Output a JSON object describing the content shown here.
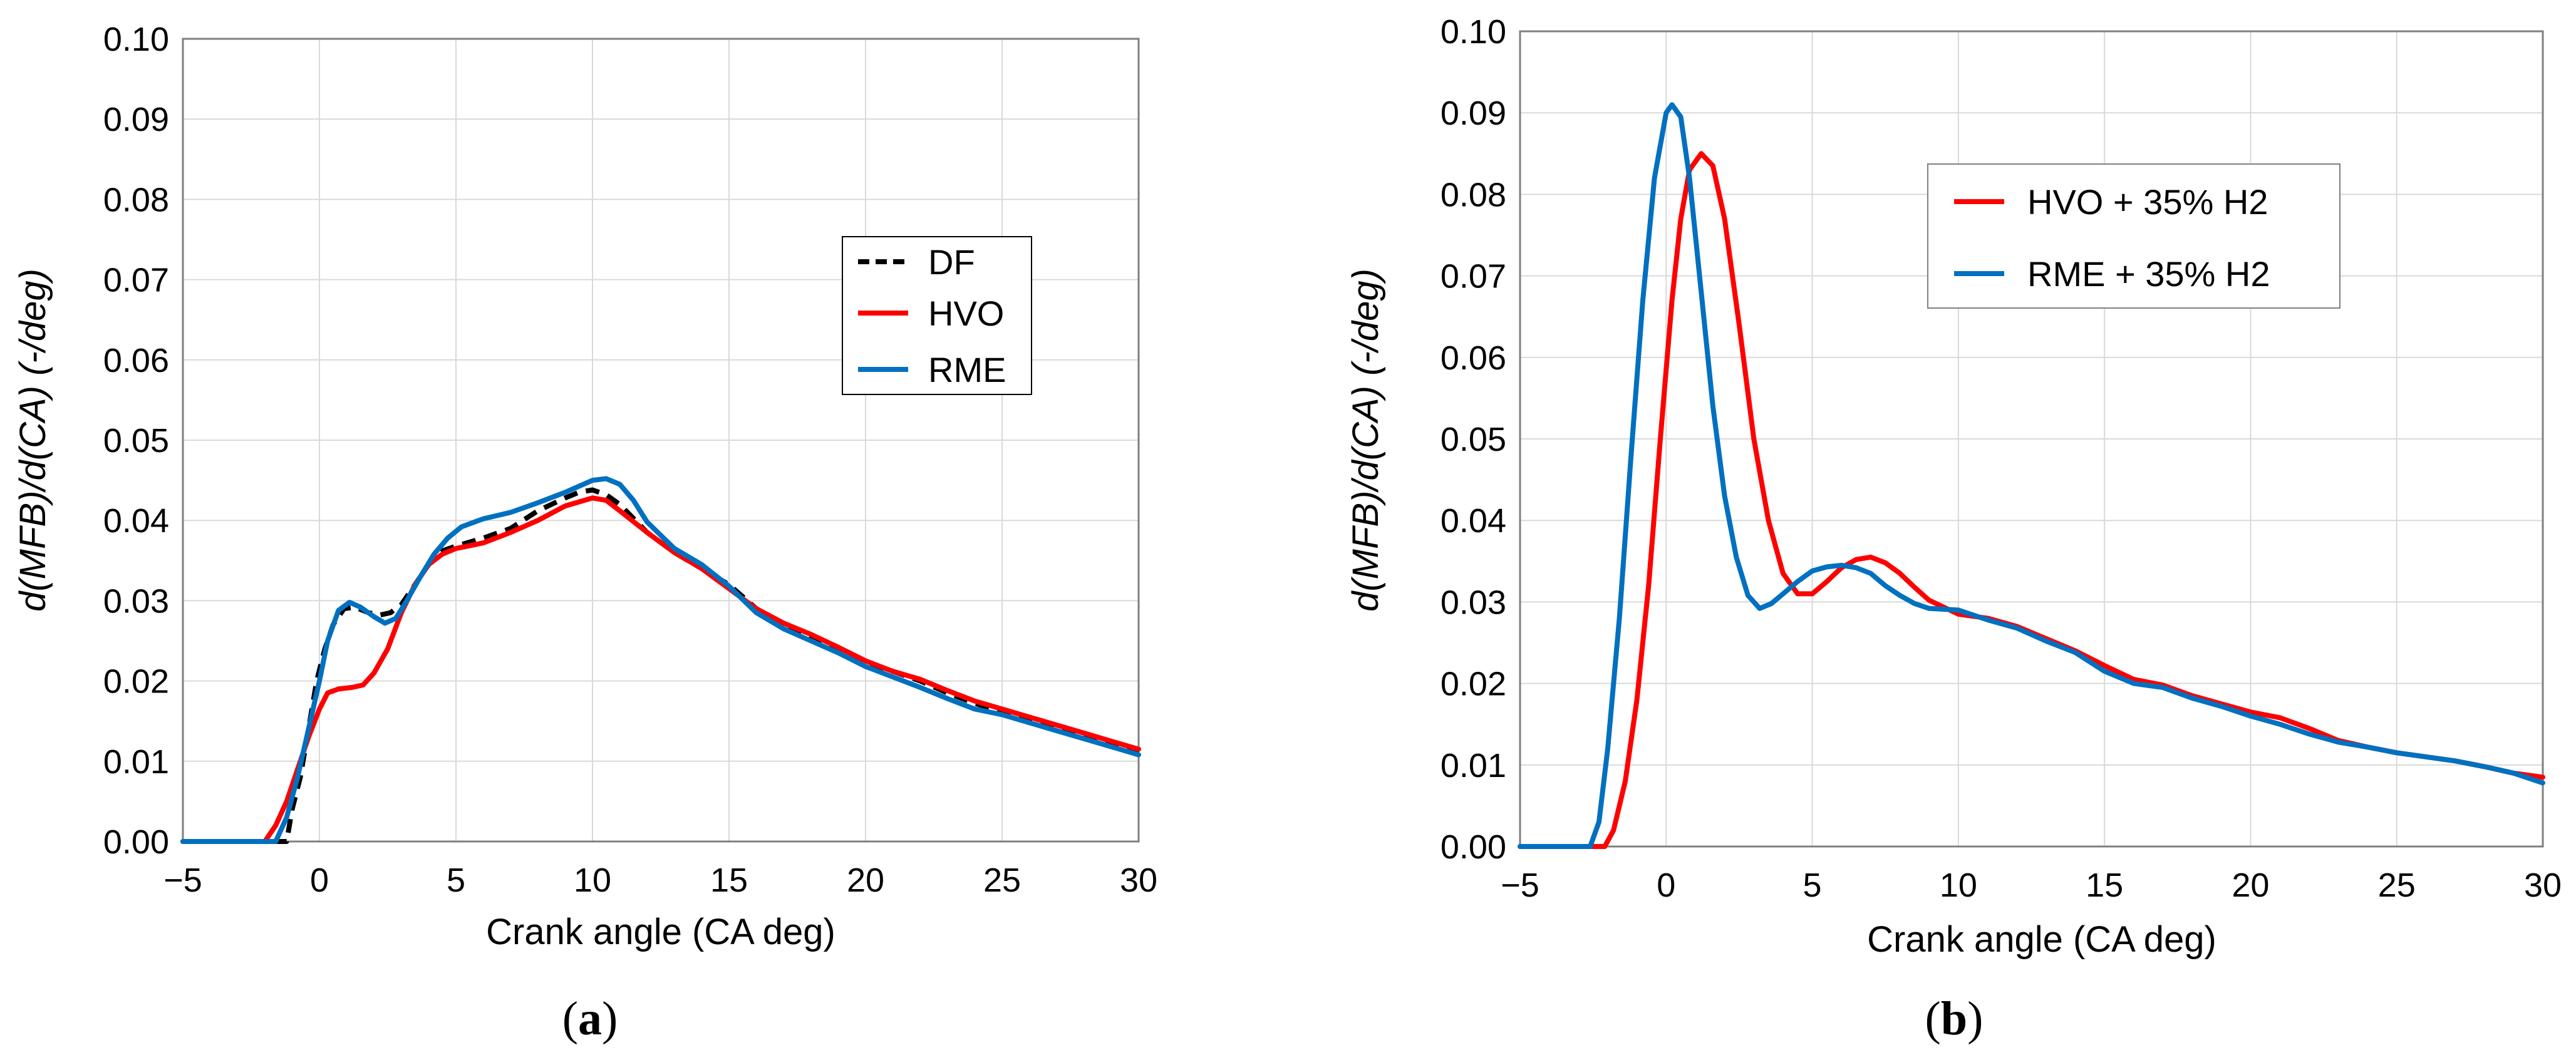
{
  "chart_data": [
    {
      "type": "line",
      "caption_letter": "a",
      "xlabel": "Crank angle (CA deg)",
      "ylabel": "d(MFB)/d(CA)  (-/deg)",
      "xlim": [
        -5,
        30
      ],
      "ylim": [
        0,
        0.1
      ],
      "x_ticks": [
        "−5",
        "0",
        "5",
        "10",
        "15",
        "20",
        "25",
        "30"
      ],
      "y_ticks": [
        "0.00",
        "0.01",
        "0.02",
        "0.03",
        "0.04",
        "0.05",
        "0.06",
        "0.07",
        "0.08",
        "0.09",
        "0.10"
      ],
      "grid": true,
      "legend_position": "right-middle",
      "series": [
        {
          "name": "DF",
          "color": "#000000",
          "dashed": true,
          "points": [
            [
              -5,
              0
            ],
            [
              -1.5,
              0
            ],
            [
              -1.2,
              0.0
            ],
            [
              -1.0,
              0.004
            ],
            [
              -0.7,
              0.008
            ],
            [
              -0.4,
              0.014
            ],
            [
              -0.1,
              0.02
            ],
            [
              0.2,
              0.024
            ],
            [
              0.5,
              0.027
            ],
            [
              0.9,
              0.029
            ],
            [
              1.3,
              0.0292
            ],
            [
              1.8,
              0.0285
            ],
            [
              2.2,
              0.0282
            ],
            [
              2.6,
              0.0285
            ],
            [
              3.0,
              0.0295
            ],
            [
              3.5,
              0.032
            ],
            [
              4.0,
              0.0345
            ],
            [
              4.5,
              0.0362
            ],
            [
              5.0,
              0.0368
            ],
            [
              6.0,
              0.0378
            ],
            [
              7.0,
              0.039
            ],
            [
              8.0,
              0.0412
            ],
            [
              9.0,
              0.0428
            ],
            [
              9.5,
              0.0435
            ],
            [
              10.0,
              0.0438
            ],
            [
              10.5,
              0.0432
            ],
            [
              11.0,
              0.042
            ],
            [
              12.0,
              0.0385
            ],
            [
              13.0,
              0.036
            ],
            [
              14.0,
              0.034
            ],
            [
              15.0,
              0.032
            ],
            [
              16.0,
              0.029
            ],
            [
              17.0,
              0.027
            ],
            [
              18.0,
              0.0255
            ],
            [
              19.0,
              0.024
            ],
            [
              20.0,
              0.022
            ],
            [
              21.0,
              0.0212
            ],
            [
              22.0,
              0.02
            ],
            [
              23.0,
              0.0185
            ],
            [
              24.0,
              0.0172
            ],
            [
              25.0,
              0.0162
            ],
            [
              26.0,
              0.0152
            ],
            [
              27.0,
              0.0142
            ],
            [
              28.0,
              0.0132
            ],
            [
              29.0,
              0.0122
            ],
            [
              30.0,
              0.0112
            ]
          ]
        },
        {
          "name": "HVO",
          "color": "#ff0000",
          "dashed": false,
          "points": [
            [
              -5,
              0
            ],
            [
              -2.0,
              0
            ],
            [
              -1.6,
              0.002
            ],
            [
              -1.2,
              0.005
            ],
            [
              -0.8,
              0.009
            ],
            [
              -0.4,
              0.013
            ],
            [
              0.0,
              0.0165
            ],
            [
              0.3,
              0.0185
            ],
            [
              0.7,
              0.019
            ],
            [
              1.2,
              0.0192
            ],
            [
              1.6,
              0.0195
            ],
            [
              2.0,
              0.021
            ],
            [
              2.5,
              0.024
            ],
            [
              3.0,
              0.0285
            ],
            [
              3.5,
              0.032
            ],
            [
              4.0,
              0.0345
            ],
            [
              4.5,
              0.0358
            ],
            [
              5.0,
              0.0365
            ],
            [
              6.0,
              0.0372
            ],
            [
              7.0,
              0.0385
            ],
            [
              8.0,
              0.04
            ],
            [
              9.0,
              0.0418
            ],
            [
              10.0,
              0.0428
            ],
            [
              10.5,
              0.0425
            ],
            [
              11.0,
              0.0412
            ],
            [
              12.0,
              0.0385
            ],
            [
              13.0,
              0.036
            ],
            [
              14.0,
              0.034
            ],
            [
              15.0,
              0.0315
            ],
            [
              16.0,
              0.029
            ],
            [
              17.0,
              0.0272
            ],
            [
              18.0,
              0.0258
            ],
            [
              19.0,
              0.0242
            ],
            [
              20.0,
              0.0225
            ],
            [
              21.0,
              0.0212
            ],
            [
              22.0,
              0.0202
            ],
            [
              23.0,
              0.0188
            ],
            [
              24.0,
              0.0175
            ],
            [
              25.0,
              0.0165
            ],
            [
              26.0,
              0.0155
            ],
            [
              27.0,
              0.0145
            ],
            [
              28.0,
              0.0135
            ],
            [
              29.0,
              0.0125
            ],
            [
              30.0,
              0.0115
            ]
          ]
        },
        {
          "name": "RME",
          "color": "#0070c0",
          "dashed": false,
          "points": [
            [
              -5,
              0
            ],
            [
              -1.6,
              0
            ],
            [
              -1.2,
              0.003
            ],
            [
              -0.8,
              0.008
            ],
            [
              -0.4,
              0.014
            ],
            [
              0.0,
              0.02
            ],
            [
              0.3,
              0.025
            ],
            [
              0.7,
              0.0288
            ],
            [
              1.1,
              0.0298
            ],
            [
              1.5,
              0.0292
            ],
            [
              2.0,
              0.028
            ],
            [
              2.4,
              0.0272
            ],
            [
              2.8,
              0.0278
            ],
            [
              3.2,
              0.03
            ],
            [
              3.7,
              0.033
            ],
            [
              4.2,
              0.0358
            ],
            [
              4.7,
              0.0378
            ],
            [
              5.2,
              0.0392
            ],
            [
              6.0,
              0.0402
            ],
            [
              7.0,
              0.041
            ],
            [
              8.0,
              0.0422
            ],
            [
              9.0,
              0.0435
            ],
            [
              10.0,
              0.045
            ],
            [
              10.5,
              0.0452
            ],
            [
              11.0,
              0.0445
            ],
            [
              11.5,
              0.0425
            ],
            [
              12.0,
              0.0398
            ],
            [
              13.0,
              0.0365
            ],
            [
              14.0,
              0.0345
            ],
            [
              15.0,
              0.0318
            ],
            [
              16.0,
              0.0285
            ],
            [
              17.0,
              0.0265
            ],
            [
              18.0,
              0.025
            ],
            [
              19.0,
              0.0235
            ],
            [
              20.0,
              0.0218
            ],
            [
              21.0,
              0.0205
            ],
            [
              22.0,
              0.0192
            ],
            [
              23.0,
              0.0178
            ],
            [
              24.0,
              0.0165
            ],
            [
              25.0,
              0.0158
            ],
            [
              26.0,
              0.0148
            ],
            [
              27.0,
              0.0138
            ],
            [
              28.0,
              0.0128
            ],
            [
              29.0,
              0.0118
            ],
            [
              30.0,
              0.0108
            ]
          ]
        }
      ]
    },
    {
      "type": "line",
      "caption_letter": "b",
      "xlabel": "Crank angle (CA deg)",
      "ylabel": "d(MFB)/d(CA)  (-/deg)",
      "xlim": [
        -5,
        30
      ],
      "ylim": [
        0,
        0.1
      ],
      "x_ticks": [
        "−5",
        "0",
        "5",
        "10",
        "15",
        "20",
        "25",
        "30"
      ],
      "y_ticks": [
        "0.00",
        "0.01",
        "0.02",
        "0.03",
        "0.04",
        "0.05",
        "0.06",
        "0.07",
        "0.08",
        "0.09",
        "0.10"
      ],
      "grid": true,
      "legend_position": "top-center",
      "series": [
        {
          "name": "HVO + 35% H2",
          "color": "#ff0000",
          "dashed": false,
          "points": [
            [
              -5,
              0
            ],
            [
              -2.1,
              0
            ],
            [
              -1.8,
              0.002
            ],
            [
              -1.4,
              0.008
            ],
            [
              -1.0,
              0.018
            ],
            [
              -0.6,
              0.032
            ],
            [
              -0.2,
              0.05
            ],
            [
              0.2,
              0.067
            ],
            [
              0.5,
              0.077
            ],
            [
              0.8,
              0.083
            ],
            [
              1.2,
              0.085
            ],
            [
              1.6,
              0.0835
            ],
            [
              2.0,
              0.077
            ],
            [
              2.5,
              0.064
            ],
            [
              3.0,
              0.05
            ],
            [
              3.5,
              0.04
            ],
            [
              4.0,
              0.0335
            ],
            [
              4.5,
              0.031
            ],
            [
              5.0,
              0.031
            ],
            [
              5.5,
              0.0325
            ],
            [
              6.0,
              0.0342
            ],
            [
              6.5,
              0.0352
            ],
            [
              7.0,
              0.0355
            ],
            [
              7.5,
              0.0348
            ],
            [
              8.0,
              0.0335
            ],
            [
              8.5,
              0.0318
            ],
            [
              9.0,
              0.0302
            ],
            [
              10.0,
              0.0285
            ],
            [
              11.0,
              0.028
            ],
            [
              12.0,
              0.027
            ],
            [
              13.0,
              0.0255
            ],
            [
              14.0,
              0.024
            ],
            [
              15.0,
              0.0222
            ],
            [
              16.0,
              0.0205
            ],
            [
              17.0,
              0.0198
            ],
            [
              18.0,
              0.0185
            ],
            [
              19.0,
              0.0175
            ],
            [
              20.0,
              0.0165
            ],
            [
              21.0,
              0.0158
            ],
            [
              22.0,
              0.0145
            ],
            [
              23.0,
              0.013
            ],
            [
              24.0,
              0.0122
            ],
            [
              25.0,
              0.0115
            ],
            [
              26.0,
              0.011
            ],
            [
              27.0,
              0.0105
            ],
            [
              28.0,
              0.0098
            ],
            [
              29.0,
              0.009
            ],
            [
              30.0,
              0.0085
            ]
          ]
        },
        {
          "name": "RME + 35% H2",
          "color": "#0070c0",
          "dashed": false,
          "points": [
            [
              -5,
              0
            ],
            [
              -2.6,
              0
            ],
            [
              -2.3,
              0.003
            ],
            [
              -2.0,
              0.012
            ],
            [
              -1.6,
              0.028
            ],
            [
              -1.2,
              0.048
            ],
            [
              -0.8,
              0.067
            ],
            [
              -0.4,
              0.082
            ],
            [
              0.0,
              0.09
            ],
            [
              0.2,
              0.091
            ],
            [
              0.5,
              0.0895
            ],
            [
              0.8,
              0.082
            ],
            [
              1.2,
              0.068
            ],
            [
              1.6,
              0.054
            ],
            [
              2.0,
              0.043
            ],
            [
              2.4,
              0.0355
            ],
            [
              2.8,
              0.0308
            ],
            [
              3.2,
              0.0292
            ],
            [
              3.6,
              0.0298
            ],
            [
              4.0,
              0.031
            ],
            [
              4.5,
              0.0325
            ],
            [
              5.0,
              0.0338
            ],
            [
              5.5,
              0.0343
            ],
            [
              6.0,
              0.0345
            ],
            [
              6.5,
              0.0342
            ],
            [
              7.0,
              0.0335
            ],
            [
              7.5,
              0.032
            ],
            [
              8.0,
              0.0308
            ],
            [
              8.5,
              0.0298
            ],
            [
              9.0,
              0.0292
            ],
            [
              10.0,
              0.029
            ],
            [
              11.0,
              0.0278
            ],
            [
              12.0,
              0.0268
            ],
            [
              13.0,
              0.0252
            ],
            [
              14.0,
              0.0238
            ],
            [
              15.0,
              0.0215
            ],
            [
              16.0,
              0.02
            ],
            [
              17.0,
              0.0195
            ],
            [
              18.0,
              0.0182
            ],
            [
              19.0,
              0.0172
            ],
            [
              20.0,
              0.016
            ],
            [
              21.0,
              0.015
            ],
            [
              22.0,
              0.0138
            ],
            [
              23.0,
              0.0128
            ],
            [
              24.0,
              0.0122
            ],
            [
              25.0,
              0.0115
            ],
            [
              26.0,
              0.011
            ],
            [
              27.0,
              0.0105
            ],
            [
              28.0,
              0.0098
            ],
            [
              29.0,
              0.009
            ],
            [
              30.0,
              0.0078
            ]
          ]
        }
      ]
    }
  ]
}
